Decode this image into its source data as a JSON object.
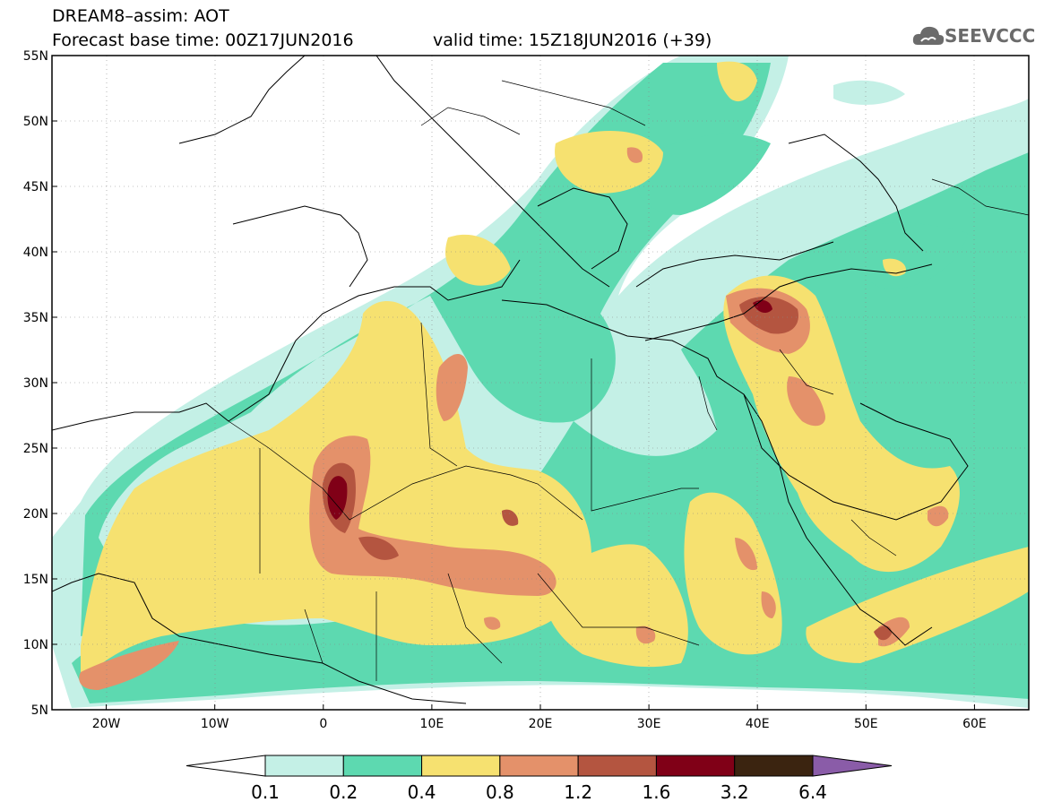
{
  "header": {
    "title": "DREAM8–assim: AOT",
    "base_time": "Forecast base time: 00Z17JUN2016",
    "valid_time": "valid time: 15Z18JUN2016 (+39)",
    "logo_text": "SEEVCCC"
  },
  "map": {
    "lat_labels": [
      "55N",
      "50N",
      "45N",
      "40N",
      "35N",
      "30N",
      "25N",
      "20N",
      "15N",
      "10N",
      "5N"
    ],
    "lat_values": [
      55,
      50,
      45,
      40,
      35,
      30,
      25,
      20,
      15,
      10,
      5
    ],
    "lon_labels": [
      "20W",
      "10W",
      "0",
      "10E",
      "20E",
      "30E",
      "40E",
      "50E",
      "60E"
    ],
    "lon_values": [
      -20,
      -10,
      0,
      10,
      20,
      30,
      40,
      50,
      60
    ],
    "lon_range": [
      -25,
      65
    ],
    "lat_range": [
      5,
      55
    ]
  },
  "colorbar": {
    "levels": [
      "0.1",
      "0.2",
      "0.4",
      "0.8",
      "1.2",
      "1.6",
      "3.2",
      "6.4"
    ],
    "colors": [
      "#ffffff",
      "#c4f0e6",
      "#5dd9b0",
      "#f6e170",
      "#e4916a",
      "#b45540",
      "#800017",
      "#3b2410",
      "#8a5ca8"
    ]
  },
  "palette": {
    "c01": "#c4f0e6",
    "c02": "#5dd9b0",
    "c04": "#f6e170",
    "c08": "#e4916a",
    "c12": "#b45540",
    "c16": "#800017",
    "c32": "#3b2410"
  }
}
